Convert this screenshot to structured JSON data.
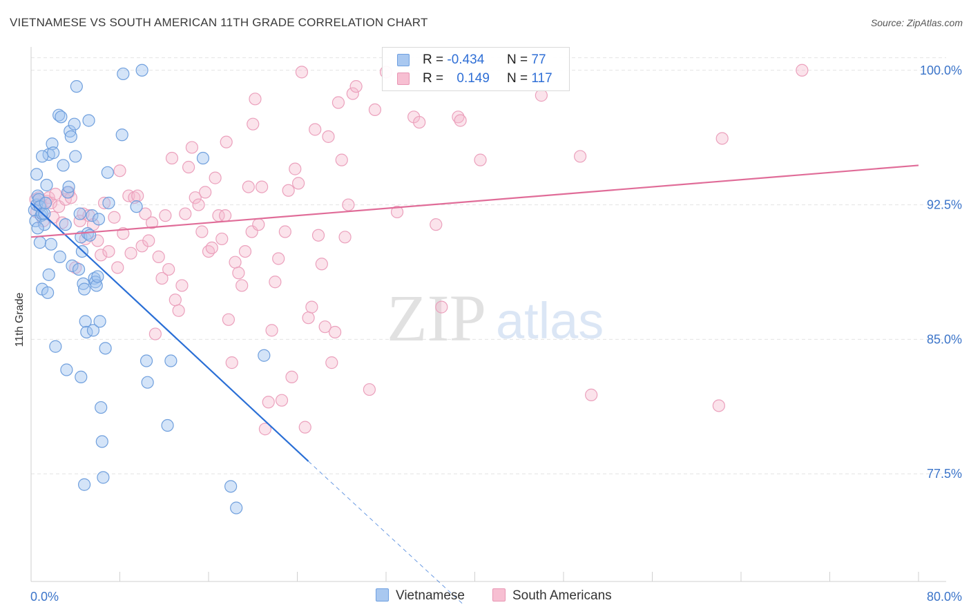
{
  "header": {
    "title": "VIETNAMESE VS SOUTH AMERICAN 11TH GRADE CORRELATION CHART",
    "source": "Source: ZipAtlas.com"
  },
  "watermark": {
    "zip": "ZIP",
    "atlas": "atlas"
  },
  "legend": {
    "r_label": "R =",
    "n_label": "N =",
    "rows": [
      {
        "name": "Vietnamese",
        "r": "-0.434",
        "n": "77",
        "color": "#a9c8f0",
        "border": "#6d9fe0"
      },
      {
        "name": "South Americans",
        "r": "0.149",
        "n": "117",
        "color": "#f7bfd2",
        "border": "#e895b3"
      }
    ]
  },
  "colors": {
    "vietnamese_fill": "rgba(160,196,240,0.45)",
    "vietnamese_stroke": "#6f9fdd",
    "vietnamese_line": "#2a6fd6",
    "south_fill": "rgba(246,184,206,0.40)",
    "south_stroke": "#eba0bc",
    "south_line": "#e06c98",
    "tick_label": "#3b74c9",
    "grid": "#e3e3e3"
  },
  "chart_data": {
    "type": "scatter",
    "title": "VIETNAMESE VS SOUTH AMERICAN 11TH GRADE CORRELATION CHART",
    "xlabel": "",
    "ylabel": "11th Grade",
    "xlim": [
      0,
      80
    ],
    "ylim": [
      71.5,
      101.3
    ],
    "x_tick_labels": [
      "0.0%",
      "80.0%"
    ],
    "y_ticks": [
      77.5,
      85.0,
      92.5,
      100.0
    ],
    "y_tick_labels": [
      "77.5%",
      "85.0%",
      "92.5%",
      "100.0%"
    ],
    "grid": true,
    "series": [
      {
        "name": "Vietnamese",
        "points": [
          [
            0.3,
            92.2
          ],
          [
            0.4,
            91.6
          ],
          [
            0.5,
            92.5
          ],
          [
            0.6,
            93.0
          ],
          [
            0.7,
            92.8
          ],
          [
            0.8,
            92.4
          ],
          [
            0.9,
            91.9
          ],
          [
            1.0,
            92.0
          ],
          [
            1.2,
            91.4
          ],
          [
            0.5,
            94.2
          ],
          [
            0.6,
            91.2
          ],
          [
            0.8,
            90.4
          ],
          [
            1.0,
            87.8
          ],
          [
            1.2,
            92.0
          ],
          [
            1.3,
            92.6
          ],
          [
            1.4,
            93.6
          ],
          [
            1.5,
            87.6
          ],
          [
            1.6,
            88.6
          ],
          [
            1.6,
            95.3
          ],
          [
            1.8,
            90.3
          ],
          [
            1.9,
            95.9
          ],
          [
            2.0,
            95.4
          ],
          [
            2.2,
            84.6
          ],
          [
            2.5,
            97.5
          ],
          [
            2.7,
            97.4
          ],
          [
            2.9,
            94.7
          ],
          [
            3.1,
            91.4
          ],
          [
            3.3,
            93.2
          ],
          [
            3.4,
            93.5
          ],
          [
            3.5,
            96.6
          ],
          [
            3.6,
            96.3
          ],
          [
            3.7,
            89.1
          ],
          [
            3.9,
            97.0
          ],
          [
            4.0,
            95.2
          ],
          [
            4.1,
            99.1
          ],
          [
            4.3,
            88.9
          ],
          [
            4.4,
            92.0
          ],
          [
            4.5,
            90.7
          ],
          [
            4.6,
            89.9
          ],
          [
            4.7,
            88.1
          ],
          [
            4.8,
            87.8
          ],
          [
            4.9,
            86.0
          ],
          [
            5.0,
            85.4
          ],
          [
            5.1,
            90.9
          ],
          [
            5.2,
            97.2
          ],
          [
            5.3,
            90.8
          ],
          [
            5.5,
            91.9
          ],
          [
            5.6,
            85.5
          ],
          [
            5.7,
            88.4
          ],
          [
            5.8,
            88.2
          ],
          [
            5.9,
            88.0
          ],
          [
            6.0,
            88.5
          ],
          [
            6.1,
            91.7
          ],
          [
            6.2,
            86.0
          ],
          [
            6.3,
            81.2
          ],
          [
            6.4,
            79.3
          ],
          [
            6.5,
            77.3
          ],
          [
            6.7,
            84.5
          ],
          [
            6.9,
            94.3
          ],
          [
            7.0,
            92.6
          ],
          [
            8.2,
            96.4
          ],
          [
            8.3,
            99.8
          ],
          [
            9.5,
            92.4
          ],
          [
            10.0,
            100.0
          ],
          [
            10.4,
            83.8
          ],
          [
            10.5,
            82.6
          ],
          [
            12.3,
            80.2
          ],
          [
            12.6,
            83.8
          ],
          [
            15.5,
            95.1
          ],
          [
            18.0,
            76.8
          ],
          [
            18.5,
            75.6
          ],
          [
            21.0,
            84.1
          ],
          [
            3.2,
            83.3
          ],
          [
            4.5,
            82.9
          ],
          [
            4.8,
            76.9
          ],
          [
            1.0,
            95.2
          ],
          [
            2.6,
            89.6
          ]
        ]
      },
      {
        "name": "South Americans",
        "points": [
          [
            0.4,
            92.8
          ],
          [
            0.5,
            92.1
          ],
          [
            0.7,
            92.9
          ],
          [
            0.9,
            92.5
          ],
          [
            1.1,
            91.6
          ],
          [
            1.4,
            92.7
          ],
          [
            1.6,
            92.9
          ],
          [
            1.8,
            92.6
          ],
          [
            2.0,
            91.8
          ],
          [
            2.2,
            93.1
          ],
          [
            2.5,
            92.4
          ],
          [
            2.8,
            91.5
          ],
          [
            3.1,
            92.8
          ],
          [
            3.4,
            93.2
          ],
          [
            3.6,
            92.9
          ],
          [
            4.0,
            89.0
          ],
          [
            4.4,
            91.6
          ],
          [
            4.7,
            92.0
          ],
          [
            4.9,
            90.6
          ],
          [
            5.2,
            91.9
          ],
          [
            5.6,
            91.4
          ],
          [
            6.0,
            90.5
          ],
          [
            6.3,
            89.7
          ],
          [
            6.6,
            92.6
          ],
          [
            7.0,
            89.9
          ],
          [
            7.5,
            91.8
          ],
          [
            7.8,
            89.0
          ],
          [
            8.0,
            94.4
          ],
          [
            8.3,
            90.9
          ],
          [
            8.8,
            93.0
          ],
          [
            9.0,
            89.8
          ],
          [
            9.3,
            92.9
          ],
          [
            9.6,
            93.0
          ],
          [
            10.0,
            90.2
          ],
          [
            10.3,
            92.0
          ],
          [
            10.6,
            90.5
          ],
          [
            10.9,
            91.5
          ],
          [
            11.2,
            85.3
          ],
          [
            11.5,
            89.6
          ],
          [
            11.8,
            88.4
          ],
          [
            12.1,
            91.9
          ],
          [
            12.4,
            88.9
          ],
          [
            12.7,
            95.1
          ],
          [
            13.0,
            87.2
          ],
          [
            13.3,
            86.6
          ],
          [
            13.6,
            88.0
          ],
          [
            13.9,
            92.0
          ],
          [
            14.2,
            94.6
          ],
          [
            14.5,
            95.7
          ],
          [
            14.8,
            92.9
          ],
          [
            15.1,
            92.5
          ],
          [
            15.4,
            91.0
          ],
          [
            15.7,
            93.2
          ],
          [
            16.0,
            89.9
          ],
          [
            16.3,
            90.1
          ],
          [
            16.6,
            94.0
          ],
          [
            16.9,
            91.9
          ],
          [
            17.2,
            90.6
          ],
          [
            17.5,
            91.9
          ],
          [
            17.8,
            86.1
          ],
          [
            18.1,
            83.7
          ],
          [
            18.4,
            89.3
          ],
          [
            18.7,
            88.7
          ],
          [
            19.0,
            88.0
          ],
          [
            19.3,
            89.9
          ],
          [
            19.6,
            93.5
          ],
          [
            19.9,
            91.0
          ],
          [
            20.2,
            98.4
          ],
          [
            20.5,
            91.4
          ],
          [
            20.8,
            93.5
          ],
          [
            21.1,
            80.0
          ],
          [
            21.4,
            81.5
          ],
          [
            21.7,
            85.5
          ],
          [
            22.0,
            88.2
          ],
          [
            22.3,
            89.5
          ],
          [
            22.6,
            81.6
          ],
          [
            22.9,
            91.0
          ],
          [
            23.2,
            93.3
          ],
          [
            23.5,
            82.9
          ],
          [
            23.8,
            94.5
          ],
          [
            24.1,
            93.7
          ],
          [
            24.4,
            99.9
          ],
          [
            24.7,
            80.1
          ],
          [
            25.0,
            86.2
          ],
          [
            25.3,
            86.8
          ],
          [
            25.6,
            96.7
          ],
          [
            25.9,
            90.8
          ],
          [
            26.2,
            89.2
          ],
          [
            26.5,
            85.7
          ],
          [
            26.8,
            96.3
          ],
          [
            27.1,
            83.7
          ],
          [
            27.4,
            85.4
          ],
          [
            27.7,
            98.2
          ],
          [
            28.0,
            95.0
          ],
          [
            28.3,
            90.7
          ],
          [
            28.6,
            92.5
          ],
          [
            29.0,
            98.7
          ],
          [
            29.3,
            99.1
          ],
          [
            30.5,
            82.2
          ],
          [
            31.0,
            97.8
          ],
          [
            32.0,
            99.9
          ],
          [
            33.0,
            92.1
          ],
          [
            34.5,
            97.4
          ],
          [
            35.0,
            97.1
          ],
          [
            36.5,
            91.4
          ],
          [
            37.0,
            86.8
          ],
          [
            38.5,
            97.4
          ],
          [
            38.7,
            97.2
          ],
          [
            40.5,
            95.0
          ],
          [
            46.0,
            98.6
          ],
          [
            49.5,
            95.2
          ],
          [
            50.5,
            81.9
          ],
          [
            62.0,
            81.3
          ],
          [
            62.3,
            96.2
          ],
          [
            69.5,
            100.0
          ],
          [
            20.0,
            97.0
          ],
          [
            17.6,
            96.0
          ]
        ]
      }
    ],
    "trend_lines": [
      {
        "series": "Vietnamese",
        "x": [
          0.0,
          25.0
        ],
        "y": [
          92.6,
          78.2
        ],
        "extension_x": [
          25.0,
          39.0
        ],
        "extension_y": [
          78.2,
          70.2
        ]
      },
      {
        "series": "South Americans",
        "x": [
          0.0,
          80.0
        ],
        "y": [
          90.7,
          94.7
        ]
      }
    ]
  }
}
